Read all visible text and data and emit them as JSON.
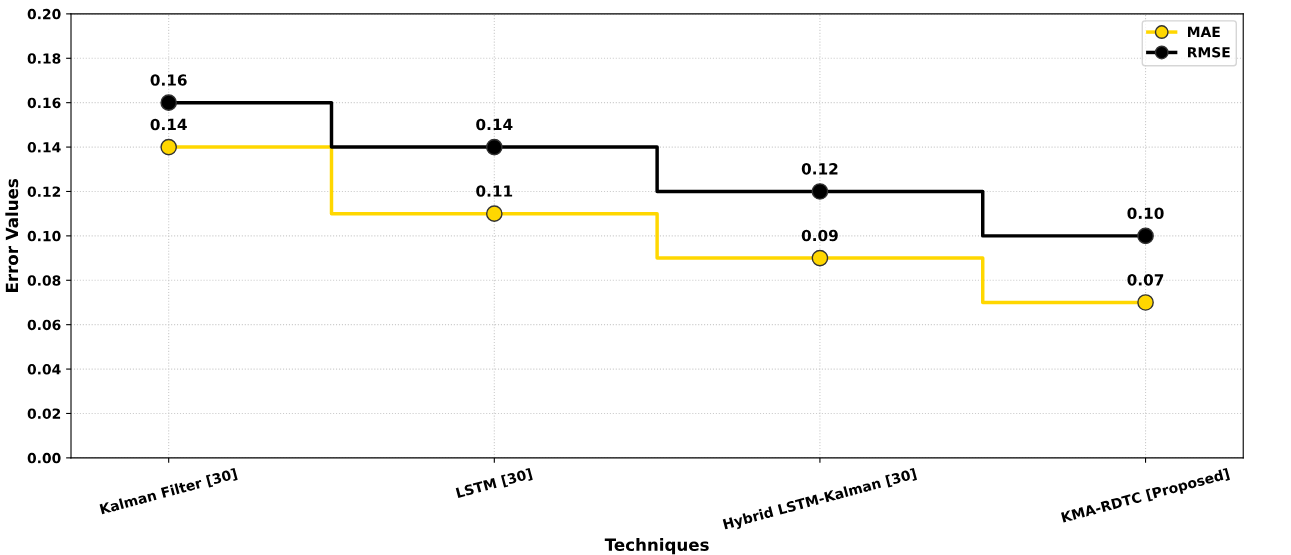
{
  "chart_data": {
    "type": "step",
    "xlabel": "Techniques",
    "ylabel": "Error Values",
    "categories": [
      "Kalman Filter [30]",
      "LSTM [30]",
      "Hybrid LSTM-Kalman [30]",
      "KMA-RDTC [Proposed]"
    ],
    "series": [
      {
        "name": "MAE",
        "color": "#ffd700",
        "values": [
          0.14,
          0.11,
          0.09,
          0.07
        ],
        "value_labels": [
          "0.14",
          "0.11",
          "0.09",
          "0.07"
        ]
      },
      {
        "name": "RMSE",
        "color": "#000000",
        "values": [
          0.16,
          0.14,
          0.12,
          0.1
        ],
        "value_labels": [
          "0.16",
          "0.14",
          "0.12",
          "0.10"
        ]
      }
    ],
    "ylim": [
      0,
      0.2
    ],
    "yticks": [
      {
        "value": 0,
        "label": "0.00"
      },
      {
        "value": 0.02,
        "label": "0.02"
      },
      {
        "value": 0.04,
        "label": "0.04"
      },
      {
        "value": 0.06,
        "label": "0.06"
      },
      {
        "value": 0.08,
        "label": "0.08"
      },
      {
        "value": 0.1,
        "label": "0.10"
      },
      {
        "value": 0.12,
        "label": "0.12"
      },
      {
        "value": 0.14,
        "label": "0.14"
      },
      {
        "value": 0.16,
        "label": "0.16"
      },
      {
        "value": 0.18,
        "label": "0.18"
      },
      {
        "value": 0.2,
        "label": "0.20"
      }
    ],
    "grid": true,
    "legend": "top right",
    "marker": "circle",
    "line_style": "solid"
  }
}
